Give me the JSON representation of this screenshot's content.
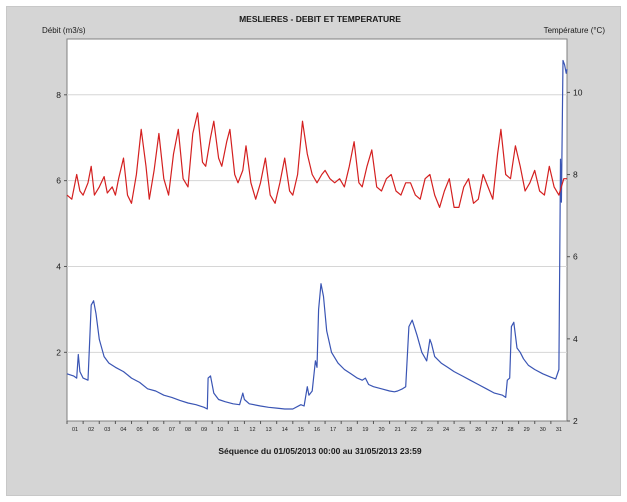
{
  "chart_data": {
    "type": "line",
    "title": "MESLIERES - DEBIT ET TEMPERATURE",
    "ylabel_left": "Débit (m3/s)",
    "ylabel_right": "Température (°C)",
    "footer": "Séquence du  01/05/2013 00:00  au  31/05/2013 23:59",
    "x_range": [
      0,
      31
    ],
    "x_ticks": [
      "01",
      "02",
      "03",
      "04",
      "05",
      "06",
      "07",
      "08",
      "09",
      "10",
      "11",
      "12",
      "13",
      "14",
      "15",
      "16",
      "17",
      "18",
      "19",
      "20",
      "21",
      "22",
      "23",
      "24",
      "25",
      "26",
      "27",
      "28",
      "29",
      "30",
      "31"
    ],
    "y_left": {
      "range": [
        0.4,
        9.3
      ],
      "ticks": [
        2,
        4,
        6,
        8
      ]
    },
    "y_right": {
      "range": [
        2,
        11.3
      ],
      "ticks": [
        2,
        4,
        6,
        8,
        10
      ]
    },
    "grid": true,
    "series": [
      {
        "axis": "left",
        "color": "#3a55b4",
        "points": [
          [
            0,
            1.5
          ],
          [
            0.4,
            1.45
          ],
          [
            0.6,
            1.4
          ],
          [
            0.7,
            1.95
          ],
          [
            0.8,
            1.55
          ],
          [
            1.0,
            1.4
          ],
          [
            1.3,
            1.35
          ],
          [
            1.5,
            3.1
          ],
          [
            1.65,
            3.2
          ],
          [
            1.8,
            2.9
          ],
          [
            2.0,
            2.3
          ],
          [
            2.3,
            1.9
          ],
          [
            2.6,
            1.75
          ],
          [
            3.0,
            1.65
          ],
          [
            3.5,
            1.55
          ],
          [
            4.0,
            1.4
          ],
          [
            4.5,
            1.3
          ],
          [
            5.0,
            1.15
          ],
          [
            5.5,
            1.1
          ],
          [
            6.0,
            1.0
          ],
          [
            6.5,
            0.95
          ],
          [
            7.0,
            0.88
          ],
          [
            7.5,
            0.82
          ],
          [
            8.0,
            0.78
          ],
          [
            8.5,
            0.72
          ],
          [
            8.7,
            0.68
          ],
          [
            8.75,
            1.4
          ],
          [
            8.9,
            1.45
          ],
          [
            9.1,
            1.05
          ],
          [
            9.4,
            0.9
          ],
          [
            9.8,
            0.85
          ],
          [
            10.3,
            0.8
          ],
          [
            10.7,
            0.78
          ],
          [
            10.9,
            1.05
          ],
          [
            11.0,
            0.9
          ],
          [
            11.3,
            0.8
          ],
          [
            12.0,
            0.75
          ],
          [
            12.5,
            0.72
          ],
          [
            13.0,
            0.7
          ],
          [
            13.5,
            0.68
          ],
          [
            14.0,
            0.68
          ],
          [
            14.5,
            0.78
          ],
          [
            14.7,
            0.75
          ],
          [
            14.9,
            1.2
          ],
          [
            15.0,
            1.0
          ],
          [
            15.2,
            1.1
          ],
          [
            15.4,
            1.8
          ],
          [
            15.5,
            1.65
          ],
          [
            15.6,
            3.0
          ],
          [
            15.75,
            3.6
          ],
          [
            15.9,
            3.3
          ],
          [
            16.1,
            2.5
          ],
          [
            16.4,
            2.0
          ],
          [
            16.8,
            1.75
          ],
          [
            17.2,
            1.6
          ],
          [
            17.6,
            1.5
          ],
          [
            18.0,
            1.4
          ],
          [
            18.3,
            1.35
          ],
          [
            18.5,
            1.4
          ],
          [
            18.7,
            1.25
          ],
          [
            19.0,
            1.2
          ],
          [
            19.5,
            1.15
          ],
          [
            20.0,
            1.1
          ],
          [
            20.3,
            1.08
          ],
          [
            20.5,
            1.1
          ],
          [
            20.8,
            1.15
          ],
          [
            21.0,
            1.2
          ],
          [
            21.2,
            2.6
          ],
          [
            21.4,
            2.75
          ],
          [
            21.7,
            2.4
          ],
          [
            22.0,
            2.0
          ],
          [
            22.3,
            1.8
          ],
          [
            22.5,
            2.3
          ],
          [
            22.6,
            2.2
          ],
          [
            22.8,
            1.9
          ],
          [
            23.2,
            1.75
          ],
          [
            23.6,
            1.65
          ],
          [
            24.0,
            1.55
          ],
          [
            24.5,
            1.45
          ],
          [
            25.0,
            1.35
          ],
          [
            25.5,
            1.25
          ],
          [
            26.0,
            1.15
          ],
          [
            26.5,
            1.05
          ],
          [
            27.0,
            1.0
          ],
          [
            27.2,
            0.95
          ],
          [
            27.3,
            1.35
          ],
          [
            27.45,
            1.4
          ],
          [
            27.55,
            2.6
          ],
          [
            27.7,
            2.7
          ],
          [
            27.9,
            2.1
          ],
          [
            28.1,
            2.0
          ],
          [
            28.3,
            1.85
          ],
          [
            28.6,
            1.7
          ],
          [
            29.0,
            1.6
          ],
          [
            29.5,
            1.5
          ],
          [
            30.0,
            1.42
          ],
          [
            30.3,
            1.38
          ],
          [
            30.5,
            1.6
          ],
          [
            30.6,
            6.5
          ],
          [
            30.65,
            5.5
          ],
          [
            30.75,
            8.8
          ],
          [
            30.85,
            8.7
          ],
          [
            30.95,
            8.5
          ],
          [
            31,
            8.6
          ]
        ]
      },
      {
        "axis": "right",
        "color": "#d42020",
        "points": [
          [
            0.0,
            7.5
          ],
          [
            0.3,
            7.4
          ],
          [
            0.6,
            8.0
          ],
          [
            0.8,
            7.6
          ],
          [
            1.0,
            7.5
          ],
          [
            1.3,
            7.8
          ],
          [
            1.5,
            8.2
          ],
          [
            1.7,
            7.5
          ],
          [
            2.0,
            7.7
          ],
          [
            2.3,
            7.95
          ],
          [
            2.5,
            7.55
          ],
          [
            2.8,
            7.7
          ],
          [
            3.0,
            7.5
          ],
          [
            3.2,
            7.9
          ],
          [
            3.5,
            8.4
          ],
          [
            3.75,
            7.5
          ],
          [
            4.0,
            7.3
          ],
          [
            4.3,
            8.0
          ],
          [
            4.6,
            9.1
          ],
          [
            4.9,
            8.2
          ],
          [
            5.1,
            7.4
          ],
          [
            5.4,
            8.1
          ],
          [
            5.7,
            9.0
          ],
          [
            6.0,
            7.9
          ],
          [
            6.3,
            7.5
          ],
          [
            6.6,
            8.5
          ],
          [
            6.9,
            9.1
          ],
          [
            7.2,
            7.9
          ],
          [
            7.5,
            7.7
          ],
          [
            7.8,
            9.0
          ],
          [
            8.1,
            9.5
          ],
          [
            8.4,
            8.3
          ],
          [
            8.6,
            8.2
          ],
          [
            8.9,
            8.9
          ],
          [
            9.1,
            9.3
          ],
          [
            9.4,
            8.4
          ],
          [
            9.6,
            8.2
          ],
          [
            9.9,
            8.8
          ],
          [
            10.1,
            9.1
          ],
          [
            10.4,
            8.0
          ],
          [
            10.6,
            7.8
          ],
          [
            10.9,
            8.1
          ],
          [
            11.1,
            8.7
          ],
          [
            11.4,
            7.8
          ],
          [
            11.7,
            7.4
          ],
          [
            12.0,
            7.8
          ],
          [
            12.3,
            8.4
          ],
          [
            12.6,
            7.5
          ],
          [
            12.9,
            7.3
          ],
          [
            13.2,
            7.8
          ],
          [
            13.5,
            8.4
          ],
          [
            13.8,
            7.6
          ],
          [
            14.0,
            7.5
          ],
          [
            14.3,
            8.0
          ],
          [
            14.6,
            9.3
          ],
          [
            14.9,
            8.5
          ],
          [
            15.2,
            8.0
          ],
          [
            15.5,
            7.8
          ],
          [
            15.8,
            8.0
          ],
          [
            16.0,
            8.1
          ],
          [
            16.3,
            7.9
          ],
          [
            16.6,
            7.8
          ],
          [
            16.9,
            7.9
          ],
          [
            17.2,
            7.7
          ],
          [
            17.5,
            8.2
          ],
          [
            17.8,
            8.8
          ],
          [
            18.1,
            7.8
          ],
          [
            18.3,
            7.7
          ],
          [
            18.6,
            8.2
          ],
          [
            18.9,
            8.6
          ],
          [
            19.2,
            7.7
          ],
          [
            19.5,
            7.6
          ],
          [
            19.8,
            7.9
          ],
          [
            20.1,
            8.0
          ],
          [
            20.4,
            7.6
          ],
          [
            20.7,
            7.5
          ],
          [
            21.0,
            7.8
          ],
          [
            21.3,
            7.8
          ],
          [
            21.6,
            7.5
          ],
          [
            21.9,
            7.4
          ],
          [
            22.2,
            7.9
          ],
          [
            22.5,
            8.0
          ],
          [
            22.8,
            7.5
          ],
          [
            23.1,
            7.2
          ],
          [
            23.4,
            7.6
          ],
          [
            23.7,
            7.9
          ],
          [
            24.0,
            7.2
          ],
          [
            24.3,
            7.2
          ],
          [
            24.6,
            7.7
          ],
          [
            24.9,
            7.9
          ],
          [
            25.2,
            7.3
          ],
          [
            25.5,
            7.4
          ],
          [
            25.8,
            8.0
          ],
          [
            26.1,
            7.7
          ],
          [
            26.4,
            7.4
          ],
          [
            26.7,
            8.5
          ],
          [
            26.9,
            9.1
          ],
          [
            27.2,
            8.0
          ],
          [
            27.5,
            7.9
          ],
          [
            27.8,
            8.7
          ],
          [
            28.1,
            8.2
          ],
          [
            28.4,
            7.6
          ],
          [
            28.7,
            7.8
          ],
          [
            29.0,
            8.1
          ],
          [
            29.3,
            7.6
          ],
          [
            29.6,
            7.5
          ],
          [
            29.9,
            8.2
          ],
          [
            30.2,
            7.7
          ],
          [
            30.5,
            7.5
          ],
          [
            30.8,
            7.9
          ],
          [
            31,
            7.9
          ]
        ]
      }
    ]
  }
}
